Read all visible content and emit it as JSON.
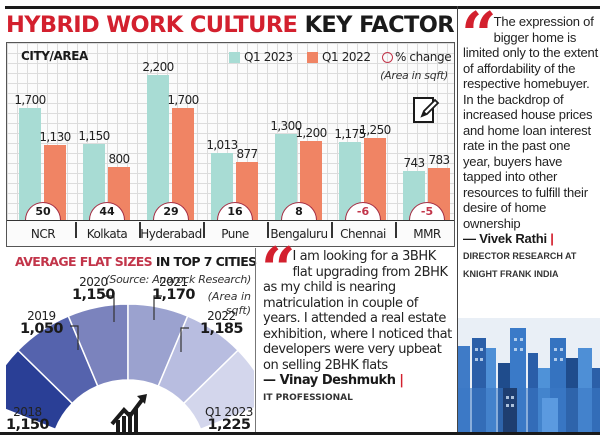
{
  "header": {
    "title_red": "HYBRID WORK CULTURE",
    "title_black": "KEY FACTOR"
  },
  "main_chart": {
    "axis_label": "CITY/AREA",
    "legend": {
      "current": "Q1 2023",
      "previous": "Q1 2022",
      "change": "% change"
    },
    "unit_note": "(Area in sqft)",
    "icon": "notepad-pencil-icon"
  },
  "flat_sizes": {
    "title_red": "AVERAGE FLAT SIZES",
    "title_black": "IN TOP 7 CITIES",
    "source": "(Source: Anarock Research)",
    "unit_line1": "(Area in",
    "unit_line2": "sqft)",
    "icon": "growth-chart-icon"
  },
  "quote_developer": {
    "text": "I am looking for a 3BHK flat upgrading from 2BHK as my child is nearing matriculation in couple of years. I attended a real estate exhibition, where I noticed that developers were very upbeat on selling 2BHK flats",
    "name": "— Vinay Deshmukh",
    "role": "IT PROFESSIONAL"
  },
  "quote_expert": {
    "text": "The expression of bigger home is limited only to the extent of affordability of the respective homebuyer. In the backdrop of increased house prices and home loan interest rate in the past one year, buyers have tapped into other resources to fulfill their desire of home ownership",
    "name": "— Vivek Rathi",
    "role": "DIRECTOR RESEARCH AT KNIGHT FRANK INDIA"
  },
  "colors": {
    "title_red": "#d3202e",
    "q1_2023": "#a8dcd4",
    "q1_2022": "#f08464",
    "change_ring": "#a52f45",
    "gauge_segments": [
      "#2a3f96",
      "#5563ad",
      "#7b83bd",
      "#9ba2cf",
      "#b8bde0",
      "#d3d6ec"
    ]
  },
  "chart_data": [
    {
      "type": "bar",
      "title": "HYBRID WORK CULTURE KEY FACTOR",
      "xlabel": "CITY/AREA",
      "ylabel": "Area in sqft",
      "categories": [
        "NCR",
        "Kolkata",
        "Hyderabad",
        "Pune",
        "Bengaluru",
        "Chennai",
        "MMR"
      ],
      "series": [
        {
          "name": "Q1 2023",
          "values": [
            1700,
            1150,
            2200,
            1013,
            1300,
            1175,
            743
          ]
        },
        {
          "name": "Q1 2022",
          "values": [
            1130,
            800,
            1700,
            877,
            1200,
            1250,
            783
          ]
        }
      ],
      "annotations": {
        "name": "% change",
        "values": [
          50,
          44,
          29,
          16,
          8,
          -6,
          -5
        ]
      },
      "grid": true,
      "legend_position": "top-right"
    },
    {
      "type": "pie",
      "style": "half-donut",
      "title": "AVERAGE FLAT SIZES IN TOP 7 CITIES",
      "subtitle": "(Source: Anarock Research)",
      "unit": "Area in sqft",
      "categories": [
        "2018",
        "2019",
        "2020",
        "2021",
        "2022",
        "Q1 2023"
      ],
      "values": [
        1150,
        1050,
        1150,
        1170,
        1185,
        1225
      ]
    }
  ]
}
